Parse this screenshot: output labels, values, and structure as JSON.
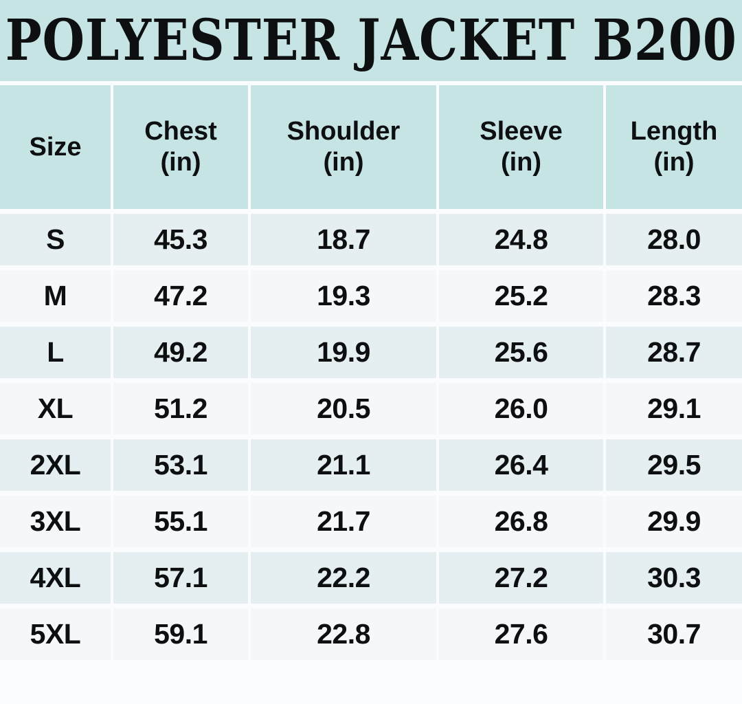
{
  "title": "POLYESTER JACKET B200",
  "colors": {
    "banner_bg": "#c6e4e4",
    "header_bg": "#c6e4e4",
    "row_odd_bg": "#e5eef0",
    "row_even_bg": "#f4f8f9",
    "page_bg": "#fafcfd",
    "text": "#0d0f10"
  },
  "table": {
    "columns": [
      {
        "label": "Size",
        "unit": ""
      },
      {
        "label": "Chest",
        "unit": "(in)"
      },
      {
        "label": "Shoulder",
        "unit": "(in)"
      },
      {
        "label": "Sleeve",
        "unit": "(in)"
      },
      {
        "label": "Length",
        "unit": "(in)"
      }
    ],
    "rows": [
      {
        "size": "S",
        "values": [
          "45.3",
          "18.7",
          "24.8",
          "28.0"
        ]
      },
      {
        "size": "M",
        "values": [
          "47.2",
          "19.3",
          "25.2",
          "28.3"
        ]
      },
      {
        "size": "L",
        "values": [
          "49.2",
          "19.9",
          "25.6",
          "28.7"
        ]
      },
      {
        "size": "XL",
        "values": [
          "51.2",
          "20.5",
          "26.0",
          "29.1"
        ]
      },
      {
        "size": "2XL",
        "values": [
          "53.1",
          "21.1",
          "26.4",
          "29.5"
        ]
      },
      {
        "size": "3XL",
        "values": [
          "55.1",
          "21.7",
          "26.8",
          "29.9"
        ]
      },
      {
        "size": "4XL",
        "values": [
          "57.1",
          "22.2",
          "27.2",
          "30.3"
        ]
      },
      {
        "size": "5XL",
        "values": [
          "59.1",
          "22.8",
          "27.6",
          "30.7"
        ]
      }
    ]
  },
  "chart_data": {
    "type": "table",
    "title": "POLYESTER JACKET B200",
    "columns": [
      "Size",
      "Chest (in)",
      "Shoulder (in)",
      "Sleeve (in)",
      "Length (in)"
    ],
    "rows": [
      [
        "S",
        45.3,
        18.7,
        24.8,
        28.0
      ],
      [
        "M",
        47.2,
        19.3,
        25.2,
        28.3
      ],
      [
        "L",
        49.2,
        19.9,
        25.6,
        28.7
      ],
      [
        "XL",
        51.2,
        20.5,
        26.0,
        29.1
      ],
      [
        "2XL",
        53.1,
        21.1,
        26.4,
        29.5
      ],
      [
        "3XL",
        55.1,
        21.7,
        26.8,
        29.9
      ],
      [
        "4XL",
        57.1,
        22.2,
        27.2,
        30.3
      ],
      [
        "5XL",
        59.1,
        22.8,
        27.6,
        30.7
      ]
    ]
  }
}
